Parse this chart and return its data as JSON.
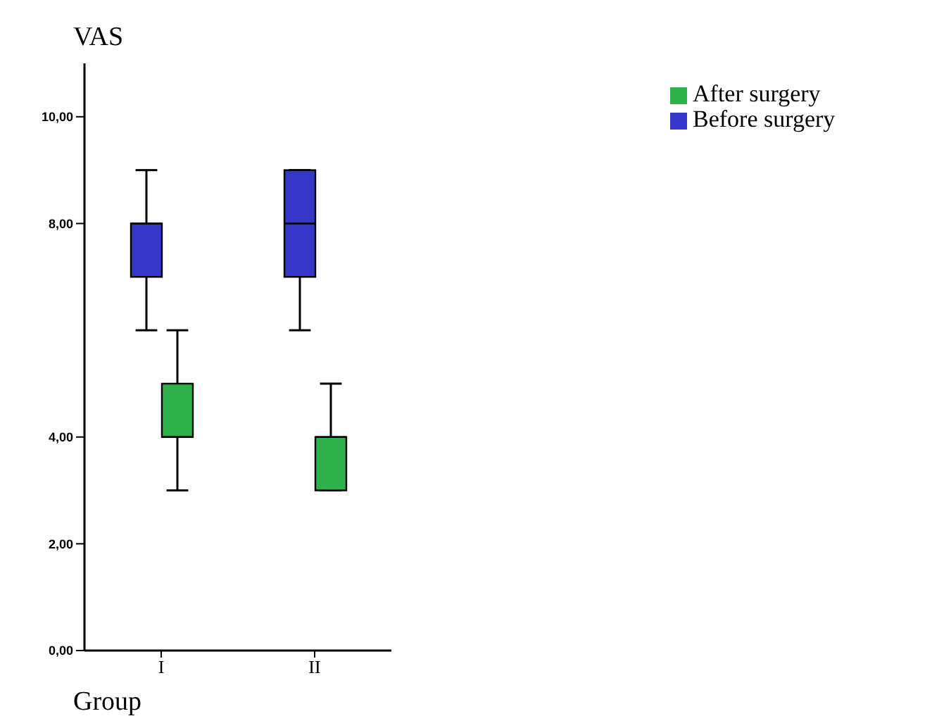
{
  "chart_data": {
    "type": "box",
    "title": "VAS",
    "xlabel": "Group",
    "categories": [
      "I",
      "II"
    ],
    "series": [
      {
        "name": "Before surgery",
        "color": "#3636c8",
        "boxes": [
          {
            "low": 6,
            "q1": 7,
            "median": 8,
            "q3": 8,
            "high": 9
          },
          {
            "low": 6,
            "q1": 7,
            "median": 8,
            "q3": 9,
            "high": 9
          }
        ]
      },
      {
        "name": "After surgery",
        "color": "#2eb04a",
        "boxes": [
          {
            "low": 3,
            "q1": 4,
            "median": 4,
            "q3": 5,
            "high": 6
          },
          {
            "low": 3,
            "q1": 3,
            "median": 4,
            "q3": 4,
            "high": 5
          }
        ]
      }
    ],
    "ylim": [
      0,
      11
    ],
    "yticks": [
      {
        "value": 0,
        "label": "0,00"
      },
      {
        "value": 2,
        "label": "2,00"
      },
      {
        "value": 4,
        "label": "4,00"
      },
      {
        "value": 8,
        "label": "8,00"
      },
      {
        "value": 10,
        "label": "10,00"
      }
    ],
    "legend": "top right"
  }
}
